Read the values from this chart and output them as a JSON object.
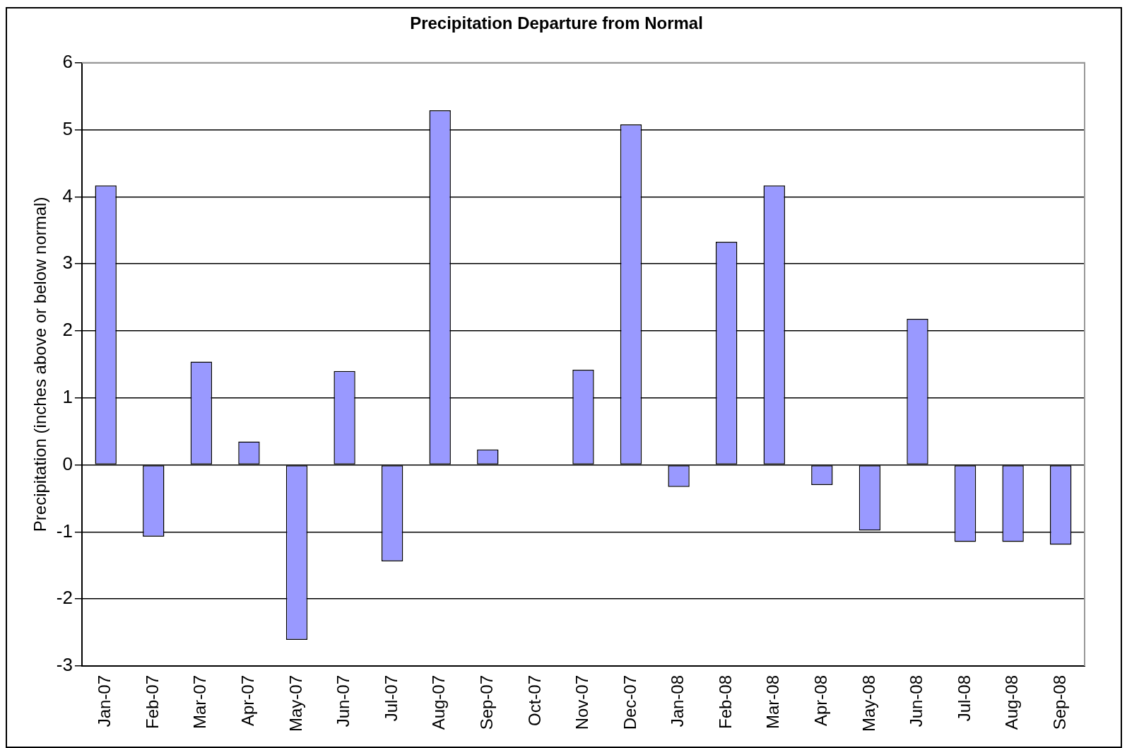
{
  "chart_data": {
    "type": "bar",
    "title": "Precipitation Departure from Normal",
    "ylabel": "Precipitation (inches above or below normal)",
    "categories": [
      "Jan-07",
      "Feb-07",
      "Mar-07",
      "Apr-07",
      "May-07",
      "Jun-07",
      "Jul-07",
      "Aug-07",
      "Sep-07",
      "Oct-07",
      "Nov-07",
      "Dec-07",
      "Jan-08",
      "Feb-08",
      "Mar-08",
      "Apr-08",
      "May-08",
      "Jun-08",
      "Jul-08",
      "Aug-08",
      "Sep-08"
    ],
    "values": [
      4.17,
      -1.07,
      1.54,
      0.35,
      -2.61,
      1.4,
      -1.44,
      5.29,
      0.23,
      0,
      1.42,
      5.08,
      -0.33,
      3.33,
      4.17,
      -0.3,
      -0.98,
      2.18,
      -1.15,
      -1.15,
      -1.19
    ],
    "color": "#9999ff",
    "ylim": [
      -3,
      6
    ],
    "yticks": [
      -3,
      -2,
      -1,
      0,
      1,
      2,
      3,
      4,
      5,
      6
    ],
    "grid": "y",
    "legend": false
  }
}
